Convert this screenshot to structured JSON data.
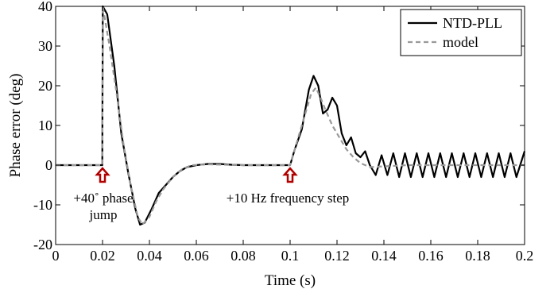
{
  "chart_data": {
    "type": "line",
    "xlabel": "Time (s)",
    "ylabel": "Phase error (deg)",
    "xlim": [
      0,
      0.2
    ],
    "ylim": [
      -20,
      40
    ],
    "x_ticks": [
      "0",
      "0.02",
      "0.04",
      "0.06",
      "0.08",
      "0.1",
      "0.12",
      "0.14",
      "0.16",
      "0.18",
      "0.2"
    ],
    "y_ticks": [
      "-20",
      "-10",
      "0",
      "10",
      "20",
      "30",
      "40"
    ],
    "grid": false,
    "legend_position": "top-right",
    "legend": [
      {
        "name": "NTD-PLL",
        "color": "#000000",
        "style": "solid"
      },
      {
        "name": "model",
        "color": "#999999",
        "style": "dashed"
      }
    ],
    "annotations": [
      {
        "lines": [
          "+40˚ phase",
          "jump"
        ],
        "x": 0.02
      },
      {
        "lines": [
          "+10 Hz frequency step"
        ],
        "x": 0.1
      }
    ],
    "annotation_arrow_color": "#b00000",
    "series": [
      {
        "name": "NTD-PLL",
        "points": [
          [
            0,
            0
          ],
          [
            0.0199,
            0
          ],
          [
            0.0201,
            40
          ],
          [
            0.022,
            38
          ],
          [
            0.025,
            25
          ],
          [
            0.028,
            8
          ],
          [
            0.031,
            -2
          ],
          [
            0.034,
            -11
          ],
          [
            0.036,
            -15
          ],
          [
            0.038,
            -14.5
          ],
          [
            0.041,
            -11
          ],
          [
            0.044,
            -7
          ],
          [
            0.047,
            -5
          ],
          [
            0.05,
            -3
          ],
          [
            0.053,
            -1.5
          ],
          [
            0.056,
            -0.5
          ],
          [
            0.06,
            0
          ],
          [
            0.065,
            0.3
          ],
          [
            0.07,
            0.3
          ],
          [
            0.075,
            0.1
          ],
          [
            0.08,
            0
          ],
          [
            0.1,
            0
          ],
          [
            0.102,
            4
          ],
          [
            0.105,
            9
          ],
          [
            0.108,
            19
          ],
          [
            0.11,
            22.5
          ],
          [
            0.112,
            20
          ],
          [
            0.114,
            13
          ],
          [
            0.116,
            14
          ],
          [
            0.118,
            17
          ],
          [
            0.12,
            15
          ],
          [
            0.122,
            8
          ],
          [
            0.124,
            5
          ],
          [
            0.126,
            7
          ],
          [
            0.128,
            3
          ],
          [
            0.13,
            2
          ],
          [
            0.132,
            3.5
          ],
          [
            0.134,
            0
          ],
          [
            0.1365,
            -2.5
          ],
          [
            0.139,
            2.5
          ],
          [
            0.1415,
            -2.5
          ],
          [
            0.144,
            3
          ],
          [
            0.1465,
            -3
          ],
          [
            0.149,
            3
          ],
          [
            0.1515,
            -3
          ],
          [
            0.154,
            3
          ],
          [
            0.1565,
            -3
          ],
          [
            0.159,
            3
          ],
          [
            0.1615,
            -3
          ],
          [
            0.164,
            3
          ],
          [
            0.1665,
            -3
          ],
          [
            0.169,
            3
          ],
          [
            0.1715,
            -3
          ],
          [
            0.174,
            3
          ],
          [
            0.1765,
            -3
          ],
          [
            0.179,
            3
          ],
          [
            0.1815,
            -3
          ],
          [
            0.184,
            3
          ],
          [
            0.1865,
            -3
          ],
          [
            0.189,
            3
          ],
          [
            0.1915,
            -3
          ],
          [
            0.194,
            3
          ],
          [
            0.1965,
            -3
          ],
          [
            0.2,
            3.5
          ]
        ]
      },
      {
        "name": "model",
        "points": [
          [
            0,
            0
          ],
          [
            0.0199,
            0
          ],
          [
            0.0201,
            40
          ],
          [
            0.023,
            30
          ],
          [
            0.026,
            18
          ],
          [
            0.029,
            5
          ],
          [
            0.032,
            -5
          ],
          [
            0.035,
            -13
          ],
          [
            0.037,
            -15
          ],
          [
            0.04,
            -13
          ],
          [
            0.043,
            -9
          ],
          [
            0.046,
            -6
          ],
          [
            0.05,
            -3
          ],
          [
            0.054,
            -1
          ],
          [
            0.058,
            0
          ],
          [
            0.065,
            0.2
          ],
          [
            0.08,
            0
          ],
          [
            0.1,
            0
          ],
          [
            0.103,
            6
          ],
          [
            0.106,
            12
          ],
          [
            0.109,
            18
          ],
          [
            0.111,
            19.5
          ],
          [
            0.113,
            17
          ],
          [
            0.115,
            14
          ],
          [
            0.118,
            10
          ],
          [
            0.121,
            7
          ],
          [
            0.124,
            4
          ],
          [
            0.127,
            2
          ],
          [
            0.13,
            0.5
          ],
          [
            0.134,
            -0.5
          ],
          [
            0.14,
            -0.3
          ],
          [
            0.15,
            0
          ],
          [
            0.2,
            0
          ]
        ]
      }
    ]
  }
}
